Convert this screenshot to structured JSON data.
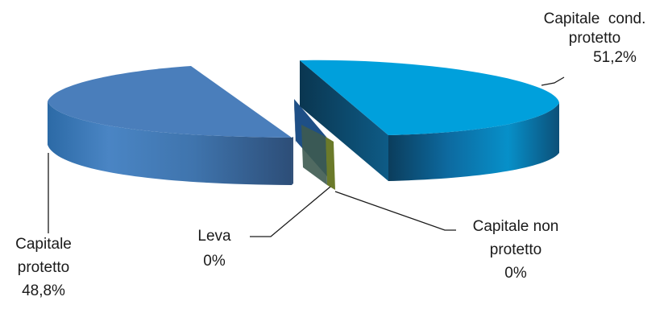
{
  "chart_data": {
    "type": "pie",
    "style": "3d-exploded",
    "series": [
      {
        "label_lines": [
          "Capitale  cond.",
          "protetto",
          "51,2%"
        ],
        "category": "Capitale cond. protetto",
        "value": 51.2,
        "percent_label": "51,2%",
        "color": "#00a0dc"
      },
      {
        "label_lines": [
          "Capitale non",
          "protetto",
          "0%"
        ],
        "category": "Capitale non protetto",
        "value": 0,
        "percent_label": "0%",
        "color": "#6b7a2a"
      },
      {
        "label_lines": [
          "Leva",
          "0%"
        ],
        "category": "Leva",
        "value": 0,
        "percent_label": "0%",
        "color": "#1e4f86"
      },
      {
        "label_lines": [
          "Capitale",
          "protetto",
          "48,8%"
        ],
        "category": "Capitale protetto",
        "value": 48.8,
        "percent_label": "48,8%",
        "color": "#4a7ebb"
      }
    ]
  }
}
